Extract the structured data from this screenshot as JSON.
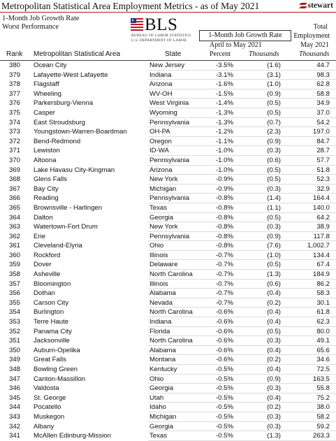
{
  "header": {
    "title": "Metropolitan Statistical Area Employment Metrics - as of May 2021",
    "brand": "stewart",
    "subtitle_line1": "1-Month Job Growth Rate",
    "subtitle_line2": "Worst Performance"
  },
  "logo": {
    "word": "BLS",
    "line1": "BUREAU OF LABOR STATISTICS",
    "line2": "U.S. DEPARTMENT OF LABOR"
  },
  "column_headers": {
    "growth_group": "1-Month Job Growth Rate",
    "growth_period": "April to May 2021",
    "employment_line1": "Total",
    "employment_line2": "Employment",
    "employment_line3": "May 2021",
    "rank": "Rank",
    "msa": "Metropolitan Statistical Area",
    "state": "State",
    "percent": "Percent",
    "thousands": "Thousands",
    "emp_thousands": "Thousands"
  },
  "rows": [
    {
      "rank": "380",
      "msa": "Ocean City",
      "state": "New Jersey",
      "pct": "-3.5%",
      "thous": "(1.6)",
      "emp": "44.7"
    },
    {
      "rank": "379",
      "msa": "Lafayette-West Lafayette",
      "state": "Indiana",
      "pct": "-3.1%",
      "thous": "(3.1)",
      "emp": "98.3"
    },
    {
      "rank": "378",
      "msa": "Flagstaff",
      "state": "Arizona",
      "pct": "-1.6%",
      "thous": "(1.0)",
      "emp": "62.8"
    },
    {
      "rank": "377",
      "msa": "Wheeling",
      "state": "WV-OH",
      "pct": "-1.5%",
      "thous": "(0.9)",
      "emp": "58.8"
    },
    {
      "rank": "376",
      "msa": "Parkersburg-Vienna",
      "state": "West Virginia",
      "pct": "-1.4%",
      "thous": "(0.5)",
      "emp": "34.9"
    },
    {
      "rank": "375",
      "msa": "Casper",
      "state": "Wyoming",
      "pct": "-1.3%",
      "thous": "(0.5)",
      "emp": "37.0"
    },
    {
      "rank": "374",
      "msa": "East Stroudsburg",
      "state": "Pennsylvania",
      "pct": "-1.3%",
      "thous": "(0.7)",
      "emp": "54.2"
    },
    {
      "rank": "373",
      "msa": "Youngstown-Warren-Boardman",
      "state": "OH-PA",
      "pct": "-1.2%",
      "thous": "(2.3)",
      "emp": "197.0"
    },
    {
      "rank": "372",
      "msa": "Bend-Redmond",
      "state": "Oregon",
      "pct": "-1.1%",
      "thous": "(0.9)",
      "emp": "84.7"
    },
    {
      "rank": "371",
      "msa": "Lewiston",
      "state": "ID-WA",
      "pct": "-1.0%",
      "thous": "(0.3)",
      "emp": "28.7"
    },
    {
      "rank": "370",
      "msa": "Altoona",
      "state": "Pennsylvania",
      "pct": "-1.0%",
      "thous": "(0.6)",
      "emp": "57.7"
    },
    {
      "rank": "369",
      "msa": "Lake Havasu City-Kingman",
      "state": "Arizona",
      "pct": "-1.0%",
      "thous": "(0.5)",
      "emp": "51.8"
    },
    {
      "rank": "368",
      "msa": "Glens Falls",
      "state": "New York",
      "pct": "-0.9%",
      "thous": "(0.5)",
      "emp": "52.3"
    },
    {
      "rank": "367",
      "msa": "Bay City",
      "state": "Michigan",
      "pct": "-0.9%",
      "thous": "(0.3)",
      "emp": "32.9"
    },
    {
      "rank": "366",
      "msa": "Reading",
      "state": "Pennsylvania",
      "pct": "-0.8%",
      "thous": "(1.4)",
      "emp": "164.4"
    },
    {
      "rank": "365",
      "msa": "Brownsville - Harlingen",
      "state": "Texas",
      "pct": "-0.8%",
      "thous": "(1.1)",
      "emp": "140.0"
    },
    {
      "rank": "364",
      "msa": "Dalton",
      "state": "Georgia",
      "pct": "-0.8%",
      "thous": "(0.5)",
      "emp": "64.2"
    },
    {
      "rank": "363",
      "msa": "Watertown-Fort Drum",
      "state": "New York",
      "pct": "-0.8%",
      "thous": "(0.3)",
      "emp": "38.9"
    },
    {
      "rank": "362",
      "msa": "Erie",
      "state": "Pennsylvania",
      "pct": "-0.8%",
      "thous": "(0.9)",
      "emp": "117.8"
    },
    {
      "rank": "361",
      "msa": "Cleveland-Elyria",
      "state": "Ohio",
      "pct": "-0.8%",
      "thous": "(7.6)",
      "emp": "1,002.7"
    },
    {
      "rank": "360",
      "msa": "Rockford",
      "state": "Illinois",
      "pct": "-0.7%",
      "thous": "(1.0)",
      "emp": "134.4"
    },
    {
      "rank": "359",
      "msa": "Dover",
      "state": "Delaware",
      "pct": "-0.7%",
      "thous": "(0.5)",
      "emp": "67.4"
    },
    {
      "rank": "358",
      "msa": "Asheville",
      "state": "North Carolina",
      "pct": "-0.7%",
      "thous": "(1.3)",
      "emp": "184.9"
    },
    {
      "rank": "357",
      "msa": "Bloomington",
      "state": "Illinois",
      "pct": "-0.7%",
      "thous": "(0.6)",
      "emp": "86.2"
    },
    {
      "rank": "356",
      "msa": "Dothan",
      "state": "Alabama",
      "pct": "-0.7%",
      "thous": "(0.4)",
      "emp": "58.3"
    },
    {
      "rank": "355",
      "msa": "Carson City",
      "state": "Nevada",
      "pct": "-0.7%",
      "thous": "(0.2)",
      "emp": "30.1"
    },
    {
      "rank": "354",
      "msa": "Burlington",
      "state": "North Carolina",
      "pct": "-0.6%",
      "thous": "(0.4)",
      "emp": "61.8"
    },
    {
      "rank": "353",
      "msa": "Terre Haute",
      "state": "Indiana",
      "pct": "-0.6%",
      "thous": "(0.4)",
      "emp": "62.3"
    },
    {
      "rank": "352",
      "msa": "Panama City",
      "state": "Florida",
      "pct": "-0.6%",
      "thous": "(0.5)",
      "emp": "80.0"
    },
    {
      "rank": "351",
      "msa": "Jacksonville",
      "state": "North Carolina",
      "pct": "-0.6%",
      "thous": "(0.3)",
      "emp": "49.1"
    },
    {
      "rank": "350",
      "msa": "Auburn-Opelika",
      "state": "Alabama",
      "pct": "-0.6%",
      "thous": "(0.4)",
      "emp": "65.6"
    },
    {
      "rank": "349",
      "msa": "Great Falls",
      "state": "Montana",
      "pct": "-0.6%",
      "thous": "(0.2)",
      "emp": "34.6"
    },
    {
      "rank": "348",
      "msa": "Bowling Green",
      "state": "Kentucky",
      "pct": "-0.5%",
      "thous": "(0.4)",
      "emp": "72.5"
    },
    {
      "rank": "347",
      "msa": "Canton-Massillon",
      "state": "Ohio",
      "pct": "-0.5%",
      "thous": "(0.9)",
      "emp": "163.5"
    },
    {
      "rank": "346",
      "msa": "Valdosta",
      "state": "Georgia",
      "pct": "-0.5%",
      "thous": "(0.3)",
      "emp": "55.8"
    },
    {
      "rank": "345",
      "msa": "St. George",
      "state": "Utah",
      "pct": "-0.5%",
      "thous": "(0.4)",
      "emp": "75.2"
    },
    {
      "rank": "344",
      "msa": "Pocatello",
      "state": "Idaho",
      "pct": "-0.5%",
      "thous": "(0.2)",
      "emp": "38.0"
    },
    {
      "rank": "343",
      "msa": "Muskegon",
      "state": "Michigan",
      "pct": "-0.5%",
      "thous": "(0.3)",
      "emp": "58.2"
    },
    {
      "rank": "342",
      "msa": "Albany",
      "state": "Georgia",
      "pct": "-0.5%",
      "thous": "(0.3)",
      "emp": "59.2"
    },
    {
      "rank": "341",
      "msa": "McAllen Edinburg-Mission",
      "state": "Texas",
      "pct": "-0.5%",
      "thous": "(1.3)",
      "emp": "263.3"
    }
  ]
}
